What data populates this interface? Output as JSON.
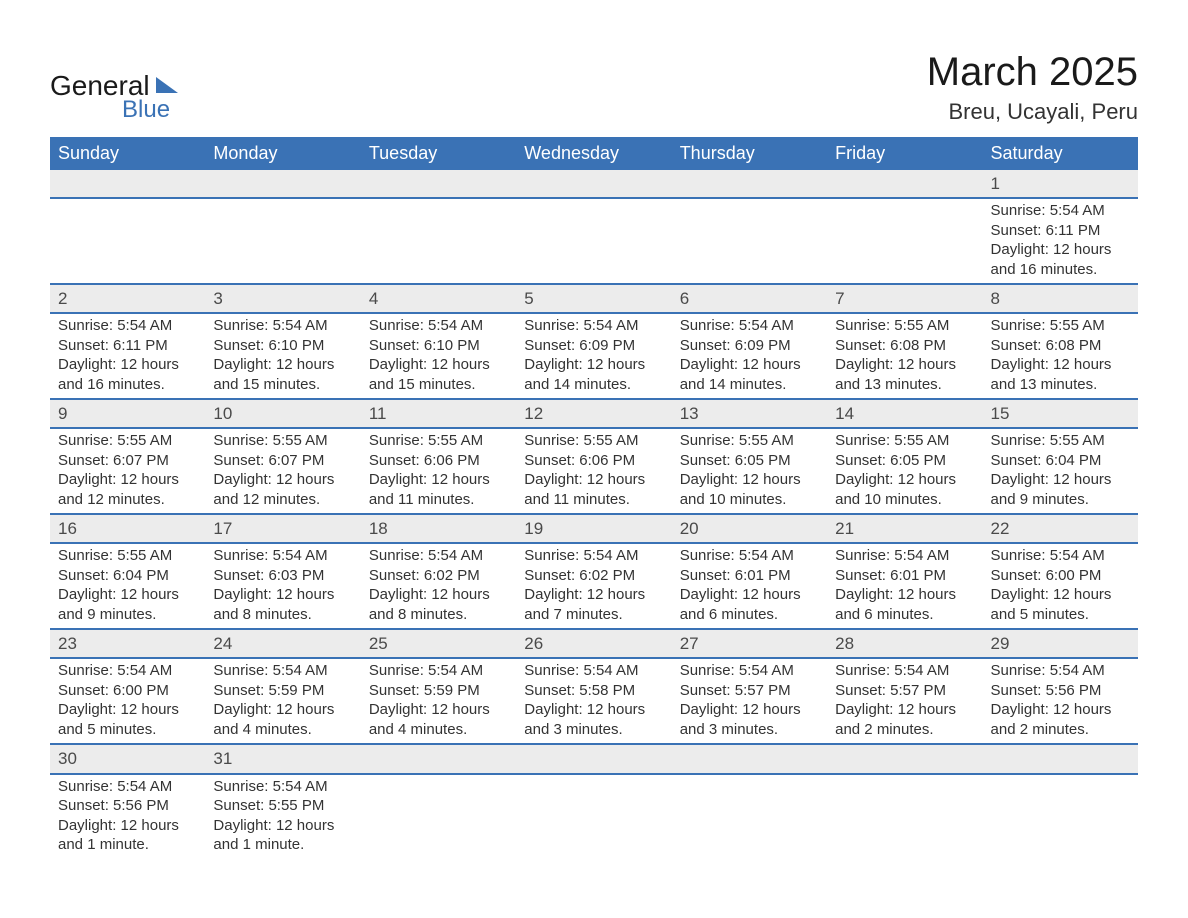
{
  "brand": {
    "general": "General",
    "blue": "Blue"
  },
  "title": "March 2025",
  "location": "Breu, Ucayali, Peru",
  "colors": {
    "header_bg": "#3a72b5",
    "header_text": "#ffffff",
    "daynum_bg": "#ececec",
    "text": "#333333",
    "row_border": "#3a72b5",
    "page_bg": "#ffffff"
  },
  "layout": {
    "title_fontsize": 40,
    "location_fontsize": 22,
    "dayheader_fontsize": 18,
    "cell_fontsize": 15
  },
  "day_headers": [
    "Sunday",
    "Monday",
    "Tuesday",
    "Wednesday",
    "Thursday",
    "Friday",
    "Saturday"
  ],
  "weeks": [
    [
      null,
      null,
      null,
      null,
      null,
      null,
      {
        "n": "1",
        "sr": "Sunrise: 5:54 AM",
        "ss": "Sunset: 6:11 PM",
        "d1": "Daylight: 12 hours",
        "d2": "and 16 minutes."
      }
    ],
    [
      {
        "n": "2",
        "sr": "Sunrise: 5:54 AM",
        "ss": "Sunset: 6:11 PM",
        "d1": "Daylight: 12 hours",
        "d2": "and 16 minutes."
      },
      {
        "n": "3",
        "sr": "Sunrise: 5:54 AM",
        "ss": "Sunset: 6:10 PM",
        "d1": "Daylight: 12 hours",
        "d2": "and 15 minutes."
      },
      {
        "n": "4",
        "sr": "Sunrise: 5:54 AM",
        "ss": "Sunset: 6:10 PM",
        "d1": "Daylight: 12 hours",
        "d2": "and 15 minutes."
      },
      {
        "n": "5",
        "sr": "Sunrise: 5:54 AM",
        "ss": "Sunset: 6:09 PM",
        "d1": "Daylight: 12 hours",
        "d2": "and 14 minutes."
      },
      {
        "n": "6",
        "sr": "Sunrise: 5:54 AM",
        "ss": "Sunset: 6:09 PM",
        "d1": "Daylight: 12 hours",
        "d2": "and 14 minutes."
      },
      {
        "n": "7",
        "sr": "Sunrise: 5:55 AM",
        "ss": "Sunset: 6:08 PM",
        "d1": "Daylight: 12 hours",
        "d2": "and 13 minutes."
      },
      {
        "n": "8",
        "sr": "Sunrise: 5:55 AM",
        "ss": "Sunset: 6:08 PM",
        "d1": "Daylight: 12 hours",
        "d2": "and 13 minutes."
      }
    ],
    [
      {
        "n": "9",
        "sr": "Sunrise: 5:55 AM",
        "ss": "Sunset: 6:07 PM",
        "d1": "Daylight: 12 hours",
        "d2": "and 12 minutes."
      },
      {
        "n": "10",
        "sr": "Sunrise: 5:55 AM",
        "ss": "Sunset: 6:07 PM",
        "d1": "Daylight: 12 hours",
        "d2": "and 12 minutes."
      },
      {
        "n": "11",
        "sr": "Sunrise: 5:55 AM",
        "ss": "Sunset: 6:06 PM",
        "d1": "Daylight: 12 hours",
        "d2": "and 11 minutes."
      },
      {
        "n": "12",
        "sr": "Sunrise: 5:55 AM",
        "ss": "Sunset: 6:06 PM",
        "d1": "Daylight: 12 hours",
        "d2": "and 11 minutes."
      },
      {
        "n": "13",
        "sr": "Sunrise: 5:55 AM",
        "ss": "Sunset: 6:05 PM",
        "d1": "Daylight: 12 hours",
        "d2": "and 10 minutes."
      },
      {
        "n": "14",
        "sr": "Sunrise: 5:55 AM",
        "ss": "Sunset: 6:05 PM",
        "d1": "Daylight: 12 hours",
        "d2": "and 10 minutes."
      },
      {
        "n": "15",
        "sr": "Sunrise: 5:55 AM",
        "ss": "Sunset: 6:04 PM",
        "d1": "Daylight: 12 hours",
        "d2": "and 9 minutes."
      }
    ],
    [
      {
        "n": "16",
        "sr": "Sunrise: 5:55 AM",
        "ss": "Sunset: 6:04 PM",
        "d1": "Daylight: 12 hours",
        "d2": "and 9 minutes."
      },
      {
        "n": "17",
        "sr": "Sunrise: 5:54 AM",
        "ss": "Sunset: 6:03 PM",
        "d1": "Daylight: 12 hours",
        "d2": "and 8 minutes."
      },
      {
        "n": "18",
        "sr": "Sunrise: 5:54 AM",
        "ss": "Sunset: 6:02 PM",
        "d1": "Daylight: 12 hours",
        "d2": "and 8 minutes."
      },
      {
        "n": "19",
        "sr": "Sunrise: 5:54 AM",
        "ss": "Sunset: 6:02 PM",
        "d1": "Daylight: 12 hours",
        "d2": "and 7 minutes."
      },
      {
        "n": "20",
        "sr": "Sunrise: 5:54 AM",
        "ss": "Sunset: 6:01 PM",
        "d1": "Daylight: 12 hours",
        "d2": "and 6 minutes."
      },
      {
        "n": "21",
        "sr": "Sunrise: 5:54 AM",
        "ss": "Sunset: 6:01 PM",
        "d1": "Daylight: 12 hours",
        "d2": "and 6 minutes."
      },
      {
        "n": "22",
        "sr": "Sunrise: 5:54 AM",
        "ss": "Sunset: 6:00 PM",
        "d1": "Daylight: 12 hours",
        "d2": "and 5 minutes."
      }
    ],
    [
      {
        "n": "23",
        "sr": "Sunrise: 5:54 AM",
        "ss": "Sunset: 6:00 PM",
        "d1": "Daylight: 12 hours",
        "d2": "and 5 minutes."
      },
      {
        "n": "24",
        "sr": "Sunrise: 5:54 AM",
        "ss": "Sunset: 5:59 PM",
        "d1": "Daylight: 12 hours",
        "d2": "and 4 minutes."
      },
      {
        "n": "25",
        "sr": "Sunrise: 5:54 AM",
        "ss": "Sunset: 5:59 PM",
        "d1": "Daylight: 12 hours",
        "d2": "and 4 minutes."
      },
      {
        "n": "26",
        "sr": "Sunrise: 5:54 AM",
        "ss": "Sunset: 5:58 PM",
        "d1": "Daylight: 12 hours",
        "d2": "and 3 minutes."
      },
      {
        "n": "27",
        "sr": "Sunrise: 5:54 AM",
        "ss": "Sunset: 5:57 PM",
        "d1": "Daylight: 12 hours",
        "d2": "and 3 minutes."
      },
      {
        "n": "28",
        "sr": "Sunrise: 5:54 AM",
        "ss": "Sunset: 5:57 PM",
        "d1": "Daylight: 12 hours",
        "d2": "and 2 minutes."
      },
      {
        "n": "29",
        "sr": "Sunrise: 5:54 AM",
        "ss": "Sunset: 5:56 PM",
        "d1": "Daylight: 12 hours",
        "d2": "and 2 minutes."
      }
    ],
    [
      {
        "n": "30",
        "sr": "Sunrise: 5:54 AM",
        "ss": "Sunset: 5:56 PM",
        "d1": "Daylight: 12 hours",
        "d2": "and 1 minute."
      },
      {
        "n": "31",
        "sr": "Sunrise: 5:54 AM",
        "ss": "Sunset: 5:55 PM",
        "d1": "Daylight: 12 hours",
        "d2": "and 1 minute."
      },
      null,
      null,
      null,
      null,
      null
    ]
  ]
}
